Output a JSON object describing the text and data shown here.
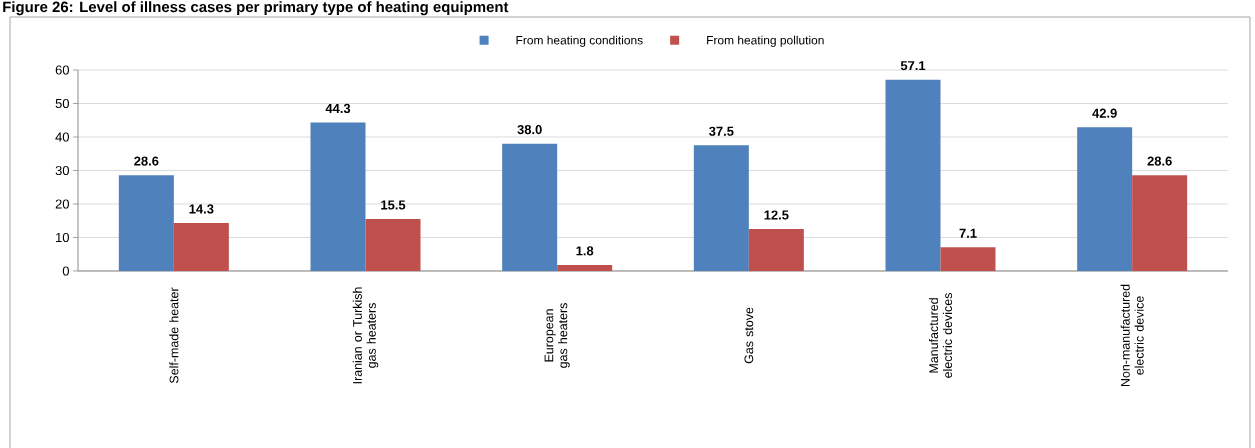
{
  "chart_data": {
    "type": "bar",
    "title": "Figure 26: Level of illness cases per primary type of heating equipment",
    "categories": [
      "Self-made heater",
      "Iranian or Turkish gas heaters",
      "European gas heaters",
      "Gas stove",
      "Manufactured electric devices",
      "Non-manufactured electric device"
    ],
    "series": [
      {
        "name": "From heating conditions",
        "color": "#4f81bd",
        "values": [
          28.6,
          44.3,
          38.0,
          37.5,
          57.1,
          42.9
        ],
        "value_labels": [
          "28.6",
          "44.3",
          "38.0",
          "37.5",
          "57.1",
          "42.9"
        ]
      },
      {
        "name": "From heating pollution",
        "color": "#c0504d",
        "values": [
          14.3,
          15.5,
          1.8,
          12.5,
          7.1,
          28.6
        ],
        "value_labels": [
          "14.3",
          "15.5",
          "1.8",
          "12.5",
          "7.1",
          "28.6"
        ]
      }
    ],
    "ylim": [
      0,
      60
    ],
    "yticks": [
      0,
      10,
      20,
      30,
      40,
      50,
      60
    ],
    "grid": "y",
    "legend": "top"
  }
}
